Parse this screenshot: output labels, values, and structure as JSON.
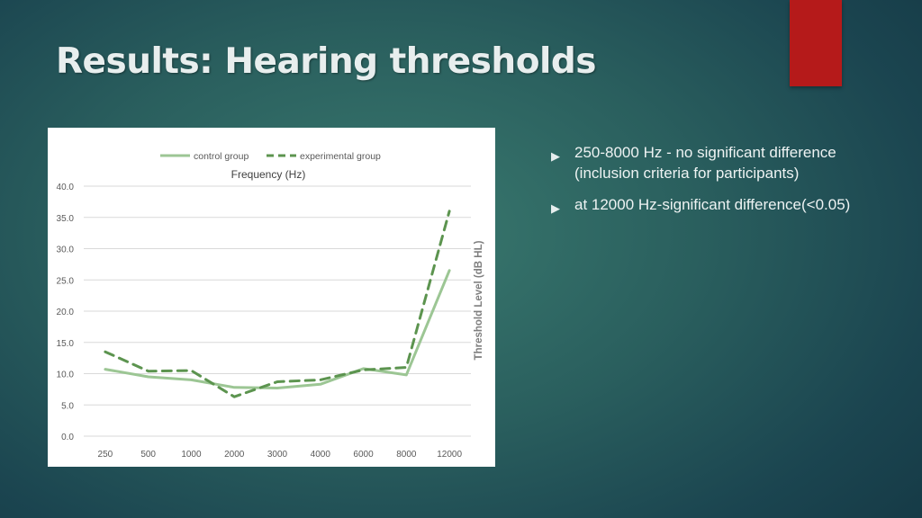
{
  "slide": {
    "title": "Results: Hearing thresholds",
    "accent_color": "#b51a1a",
    "bullets": [
      "250-8000 Hz - no significant difference (inclusion criteria for participants)",
      "at 12000 Hz-significant difference(<0.05)"
    ],
    "bullet_icon": "triangle-right-icon"
  },
  "chart_data": {
    "type": "line",
    "title": "Frequency (Hz)",
    "xlabel": "",
    "ylabel": "Threshold Level (dB HL)",
    "categories": [
      "250",
      "500",
      "1000",
      "2000",
      "3000",
      "4000",
      "6000",
      "8000",
      "12000"
    ],
    "ylim": [
      0,
      40
    ],
    "yticks": [
      "0.0",
      "5.0",
      "10.0",
      "15.0",
      "20.0",
      "25.0",
      "30.0",
      "35.0",
      "40.0"
    ],
    "grid": true,
    "legend_position": "top",
    "series": [
      {
        "name": "control group",
        "style": "solid",
        "color": "#9cc694",
        "values": [
          10.7,
          9.5,
          9.0,
          7.8,
          7.7,
          8.3,
          10.8,
          9.8,
          26.5
        ]
      },
      {
        "name": "experimental group",
        "style": "dashed",
        "color": "#5c944f",
        "values": [
          13.5,
          10.4,
          10.5,
          6.3,
          8.7,
          9.0,
          10.6,
          11.0,
          36.0
        ]
      }
    ]
  }
}
